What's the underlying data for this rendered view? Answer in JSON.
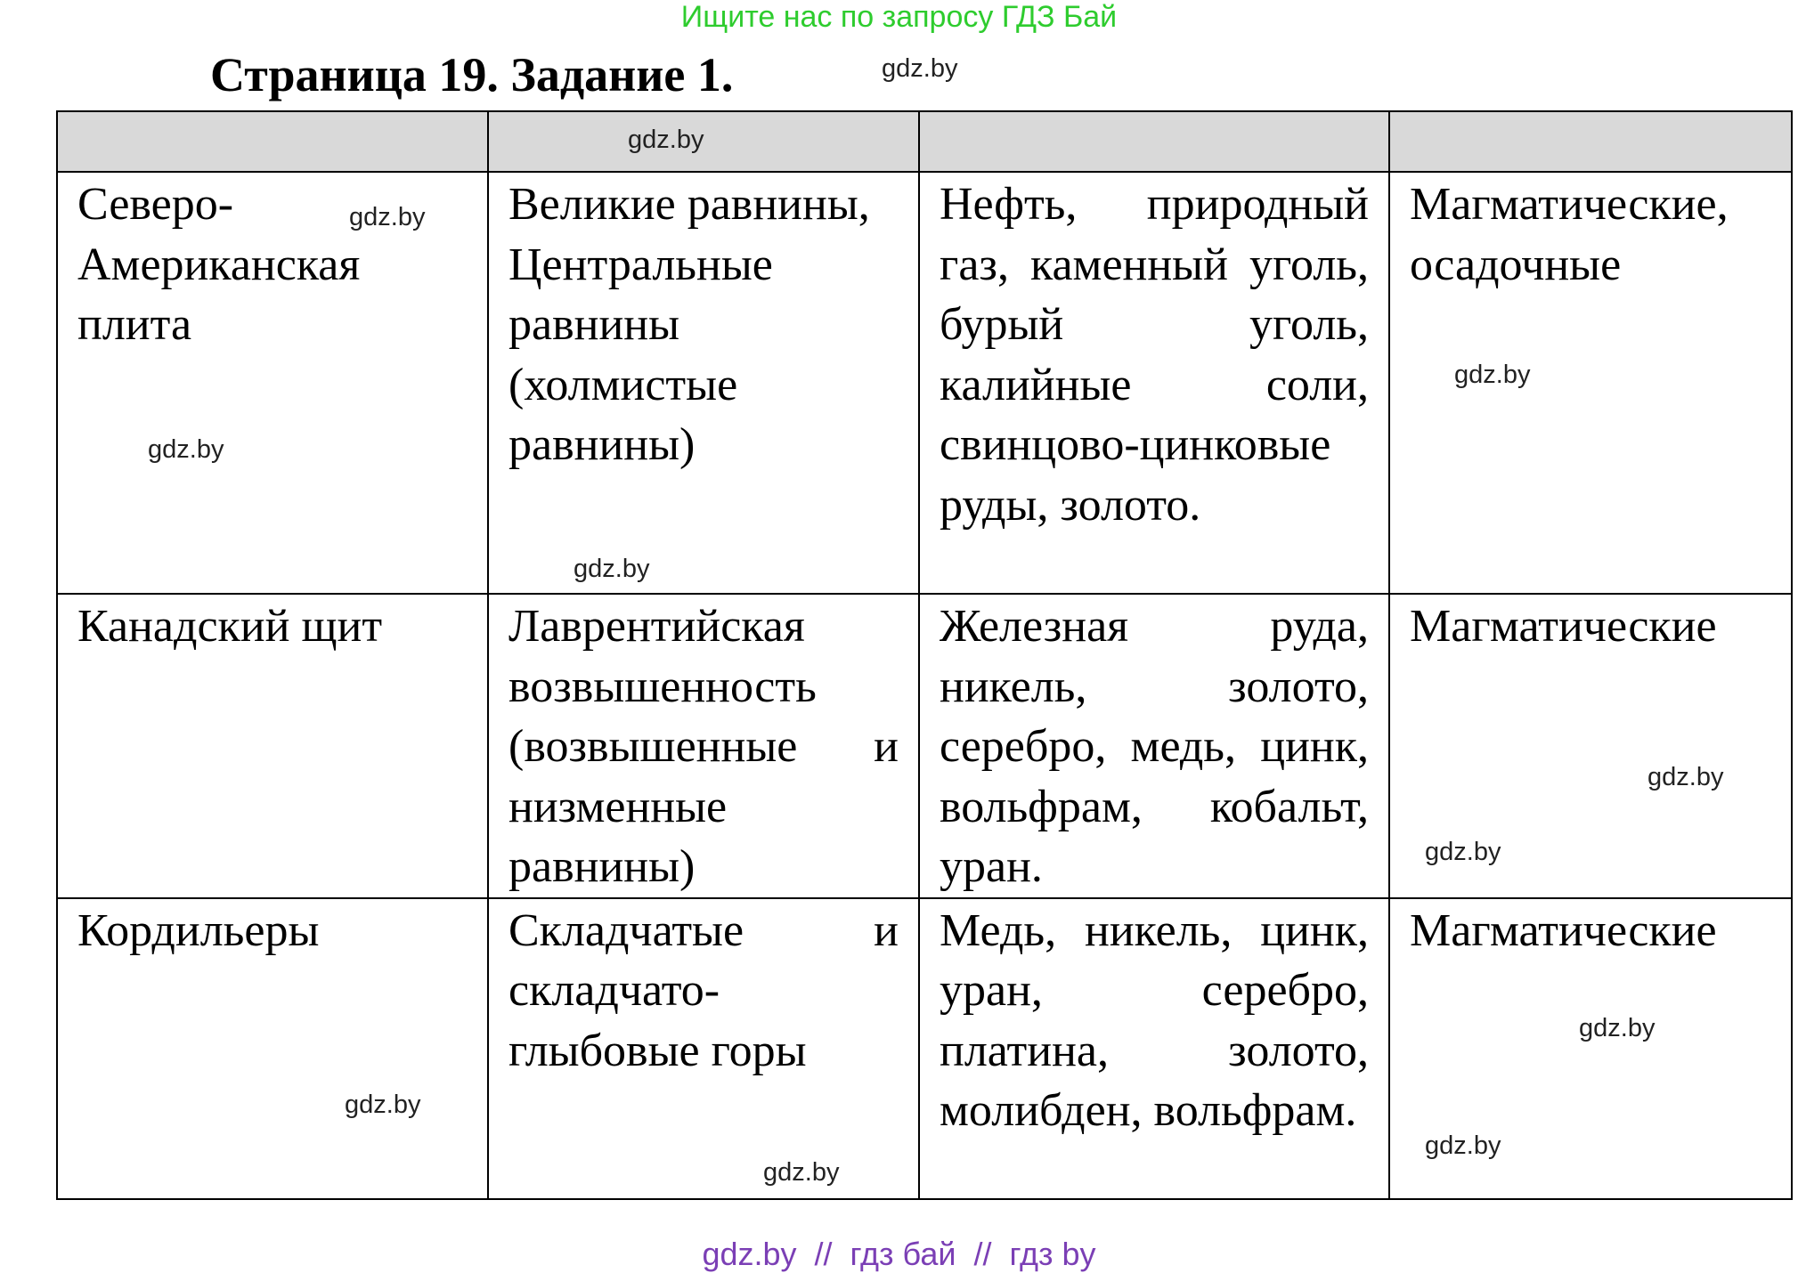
{
  "promo_text": "Ищите нас по запросу ГДЗ Бай",
  "title": "Страница 19. Задание 1.",
  "watermark": "gdz.by",
  "table": {
    "header": [
      "",
      "",
      "",
      ""
    ],
    "rows": [
      [
        "Северо-Американская плита",
        "Великие равнины, Центральные равнины (холмистые равнины)",
        "Нефть, природный газ, каменный уголь, бурый уголь, калийные соли, свинцово-цинковые руды, золото.",
        "Магматические, осадочные"
      ],
      [
        "Канадский щит",
        "Лаврентийская возвышенность (возвышенные и низменные равнины)",
        "Железная руда, никель, золото, серебро, медь, цинк, вольфрам, кобальт, уран.",
        "Магматические"
      ],
      [
        "Кордильеры",
        "Складчатые и складчато-глыбовые горы",
        "Медь, никель, цинк, уран, серебро, платина, золото, молибден, вольфрам.",
        "Магматические"
      ]
    ]
  },
  "footer": "gdz.by  //  гдз бай  //  гдз by",
  "colors": {
    "promo": "#2ecc2e",
    "footer": "#7b3fb5",
    "header_bg": "#d9d9d9"
  }
}
